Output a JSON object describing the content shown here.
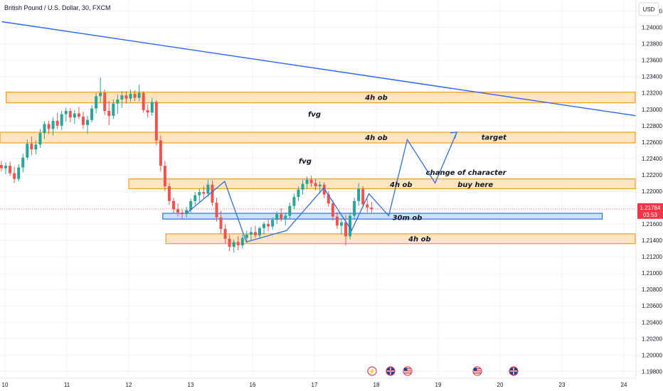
{
  "header": {
    "title": "British Pound / U.S. Dollar, 30, FXCM"
  },
  "currency_button": "USD",
  "price_badge": {
    "price": "1.21784",
    "countdown": "03:53",
    "color": "#f23645"
  },
  "colors": {
    "up": "#26a69a",
    "down": "#ef5350",
    "zone_fill": "#fde5c0",
    "zone_border": "#f59b22",
    "ob30_fill": "#cfe2fb",
    "ob30_border": "#2a6fdb",
    "trendline": "#2962ff",
    "path": "#2f6fe0"
  },
  "y_axis": {
    "ticks": [
      "1.24200",
      "1.24000",
      "1.23800",
      "1.23600",
      "1.23400",
      "1.23200",
      "1.23000",
      "1.22800",
      "1.22600",
      "1.22400",
      "1.22200",
      "1.22000",
      "1.21600",
      "1.21400",
      "1.21200",
      "1.21000",
      "1.20800",
      "1.20600",
      "1.20400",
      "1.20200",
      "1.20000",
      "1.19800"
    ],
    "values": [
      1.242,
      1.24,
      1.238,
      1.236,
      1.234,
      1.232,
      1.23,
      1.228,
      1.226,
      1.224,
      1.222,
      1.22,
      1.216,
      1.214,
      1.212,
      1.21,
      1.208,
      1.206,
      1.204,
      1.202,
      1.2,
      1.198
    ]
  },
  "x_axis": {
    "labels": [
      "10",
      "11",
      "12",
      "13",
      "16",
      "17",
      "18",
      "19",
      "20",
      "23",
      "24"
    ],
    "positions": [
      0,
      1,
      2,
      3,
      4,
      5,
      6,
      7,
      8,
      9,
      10
    ]
  },
  "chart_data": {
    "type": "candlestick",
    "title": "British Pound / U.S. Dollar, 30, FXCM",
    "ylim": [
      1.1975,
      1.2435
    ],
    "last_price": 1.21784,
    "zones": [
      {
        "label": "4h ob",
        "y_low": 1.2308,
        "y_high": 1.2321,
        "x_from": 0.02,
        "x_to": 10.3,
        "kind": "4h"
      },
      {
        "label": "4h ob",
        "y_low": 1.2259,
        "y_high": 1.2272,
        "x_from": -0.2,
        "x_to": 10.3,
        "kind": "4h"
      },
      {
        "label": "target",
        "y_low": 1.2259,
        "y_high": 1.2272,
        "x_from": 7.1,
        "x_to": 10.3,
        "kind": "none"
      },
      {
        "label": "4h ob",
        "y_low": 1.2203,
        "y_high": 1.2215,
        "x_from": 2.0,
        "x_to": 10.3,
        "kind": "4h"
      },
      {
        "label": "30m ob",
        "y_low": 1.2166,
        "y_high": 1.2173,
        "x_from": 2.55,
        "x_to": 9.65,
        "kind": "30m"
      },
      {
        "label": "4h ob",
        "y_low": 1.2136,
        "y_high": 1.2148,
        "x_from": 2.6,
        "x_to": 10.3,
        "kind": "4h"
      }
    ],
    "annotations": [
      {
        "text": "fvg",
        "x": 5.0,
        "y": 1.2294
      },
      {
        "text": "fvg",
        "x": 4.85,
        "y": 1.2237
      },
      {
        "text": "change of character",
        "x": 7.45,
        "y": 1.2223
      },
      {
        "text": "4h ob",
        "x": 6.4,
        "y": 1.2208
      },
      {
        "text": "buy here",
        "x": 7.6,
        "y": 1.2208
      },
      {
        "text": "target",
        "x": 7.9,
        "y": 1.2266
      },
      {
        "text": "30m ob",
        "x": 6.5,
        "y": 1.2168
      },
      {
        "text": "4h ob",
        "x": 6.7,
        "y": 1.2142
      }
    ],
    "trendline": [
      {
        "x": -0.05,
        "y": 1.2407
      },
      {
        "x": 10.3,
        "y": 1.2291
      }
    ],
    "projection_path": [
      {
        "x": 2.95,
        "y": 1.2174
      },
      {
        "x": 3.55,
        "y": 1.2212
      },
      {
        "x": 3.9,
        "y": 1.2138
      },
      {
        "x": 4.55,
        "y": 1.2152
      },
      {
        "x": 5.15,
        "y": 1.2204
      },
      {
        "x": 5.6,
        "y": 1.2152
      },
      {
        "x": 5.88,
        "y": 1.2197
      },
      {
        "x": 6.2,
        "y": 1.217
      },
      {
        "x": 6.5,
        "y": 1.2263
      },
      {
        "x": 6.95,
        "y": 1.221
      },
      {
        "x": 7.3,
        "y": 1.2272
      }
    ],
    "candles": [
      [
        1.2232,
        1.2237,
        1.2224,
        1.2228
      ],
      [
        1.2228,
        1.2235,
        1.2221,
        1.2231
      ],
      [
        1.2231,
        1.2236,
        1.2219,
        1.2222
      ],
      [
        1.2222,
        1.223,
        1.221,
        1.2215
      ],
      [
        1.2215,
        1.2233,
        1.2212,
        1.2229
      ],
      [
        1.2229,
        1.2246,
        1.2223,
        1.2241
      ],
      [
        1.2241,
        1.2263,
        1.2238,
        1.2258
      ],
      [
        1.2258,
        1.2267,
        1.2244,
        1.2251
      ],
      [
        1.2251,
        1.2262,
        1.2245,
        1.2257
      ],
      [
        1.2257,
        1.2276,
        1.2253,
        1.2271
      ],
      [
        1.2271,
        1.2285,
        1.2264,
        1.2282
      ],
      [
        1.2282,
        1.2286,
        1.227,
        1.2276
      ],
      [
        1.2276,
        1.229,
        1.2268,
        1.2286
      ],
      [
        1.2286,
        1.2296,
        1.2276,
        1.228
      ],
      [
        1.228,
        1.2298,
        1.2275,
        1.2294
      ],
      [
        1.2294,
        1.2302,
        1.2285,
        1.2298
      ],
      [
        1.2298,
        1.2301,
        1.2284,
        1.229
      ],
      [
        1.229,
        1.2299,
        1.2282,
        1.2295
      ],
      [
        1.2295,
        1.2303,
        1.2288,
        1.2291
      ],
      [
        1.2291,
        1.2297,
        1.2276,
        1.2281
      ],
      [
        1.2281,
        1.2292,
        1.227,
        1.2287
      ],
      [
        1.2287,
        1.2305,
        1.2284,
        1.2301
      ],
      [
        1.2301,
        1.232,
        1.2295,
        1.2316
      ],
      [
        1.2316,
        1.2339,
        1.2308,
        1.232
      ],
      [
        1.232,
        1.2324,
        1.2293,
        1.2298
      ],
      [
        1.2298,
        1.231,
        1.2281,
        1.2292
      ],
      [
        1.2292,
        1.2312,
        1.2288,
        1.2307
      ],
      [
        1.2307,
        1.2318,
        1.2295,
        1.2312
      ],
      [
        1.2312,
        1.2322,
        1.2302,
        1.2317
      ],
      [
        1.2317,
        1.2322,
        1.2307,
        1.2313
      ],
      [
        1.2313,
        1.2324,
        1.2309,
        1.2319
      ],
      [
        1.2319,
        1.2323,
        1.231,
        1.2314
      ],
      [
        1.2314,
        1.233,
        1.231,
        1.232
      ],
      [
        1.232,
        1.2322,
        1.2296,
        1.2299
      ],
      [
        1.2299,
        1.2306,
        1.229,
        1.2296
      ],
      [
        1.2296,
        1.2314,
        1.2292,
        1.2309
      ],
      [
        1.2309,
        1.2311,
        1.2256,
        1.2262
      ],
      [
        1.2262,
        1.2268,
        1.2224,
        1.2231
      ],
      [
        1.2231,
        1.2237,
        1.22,
        1.2206
      ],
      [
        1.2206,
        1.221,
        1.2183,
        1.2188
      ],
      [
        1.2188,
        1.2192,
        1.2173,
        1.2178
      ],
      [
        1.2178,
        1.2185,
        1.2169,
        1.2174
      ],
      [
        1.2174,
        1.2178,
        1.2166,
        1.2172
      ],
      [
        1.2172,
        1.2181,
        1.2168,
        1.2177
      ],
      [
        1.2177,
        1.2191,
        1.2174,
        1.2188
      ],
      [
        1.2188,
        1.2199,
        1.2183,
        1.2195
      ],
      [
        1.2195,
        1.2203,
        1.2187,
        1.2199
      ],
      [
        1.2199,
        1.2206,
        1.219,
        1.2197
      ],
      [
        1.2197,
        1.2214,
        1.2193,
        1.2208
      ],
      [
        1.2208,
        1.2213,
        1.2182,
        1.2186
      ],
      [
        1.2186,
        1.2192,
        1.2163,
        1.2168
      ],
      [
        1.2168,
        1.2176,
        1.2148,
        1.2154
      ],
      [
        1.2154,
        1.216,
        1.2136,
        1.2142
      ],
      [
        1.2142,
        1.2147,
        1.2127,
        1.2132
      ],
      [
        1.2132,
        1.2141,
        1.2125,
        1.2138
      ],
      [
        1.2138,
        1.2145,
        1.2128,
        1.2134
      ],
      [
        1.2134,
        1.2147,
        1.213,
        1.2143
      ],
      [
        1.2143,
        1.2152,
        1.2137,
        1.2147
      ],
      [
        1.2147,
        1.2156,
        1.214,
        1.215
      ],
      [
        1.215,
        1.2158,
        1.2143,
        1.2146
      ],
      [
        1.2146,
        1.2157,
        1.2142,
        1.2155
      ],
      [
        1.2155,
        1.2163,
        1.2147,
        1.216
      ],
      [
        1.216,
        1.2167,
        1.2151,
        1.2157
      ],
      [
        1.2157,
        1.2168,
        1.2153,
        1.2165
      ],
      [
        1.2165,
        1.2175,
        1.216,
        1.2172
      ],
      [
        1.2172,
        1.2179,
        1.2163,
        1.2166
      ],
      [
        1.2166,
        1.2174,
        1.2158,
        1.217
      ],
      [
        1.217,
        1.2186,
        1.2166,
        1.2182
      ],
      [
        1.2182,
        1.2197,
        1.2178,
        1.2193
      ],
      [
        1.2193,
        1.2206,
        1.2188,
        1.2202
      ],
      [
        1.2202,
        1.2214,
        1.2196,
        1.2209
      ],
      [
        1.2209,
        1.2218,
        1.2203,
        1.2214
      ],
      [
        1.2214,
        1.2219,
        1.2205,
        1.221
      ],
      [
        1.221,
        1.2215,
        1.2201,
        1.2206
      ],
      [
        1.2206,
        1.2212,
        1.2197,
        1.2208
      ],
      [
        1.2208,
        1.2211,
        1.2192,
        1.2196
      ],
      [
        1.2196,
        1.22,
        1.2181,
        1.2185
      ],
      [
        1.2185,
        1.2189,
        1.2164,
        1.2169
      ],
      [
        1.2169,
        1.2175,
        1.2154,
        1.2158
      ],
      [
        1.2158,
        1.2166,
        1.2147,
        1.2162
      ],
      [
        1.2162,
        1.2171,
        1.2134,
        1.2145
      ],
      [
        1.2145,
        1.2174,
        1.2141,
        1.217
      ],
      [
        1.217,
        1.2192,
        1.2166,
        1.2188
      ],
      [
        1.2188,
        1.221,
        1.2182,
        1.2203
      ],
      [
        1.2203,
        1.2206,
        1.218,
        1.2184
      ],
      [
        1.2184,
        1.2191,
        1.2174,
        1.218
      ],
      [
        1.218,
        1.2187,
        1.2173,
        1.2178
      ]
    ]
  }
}
